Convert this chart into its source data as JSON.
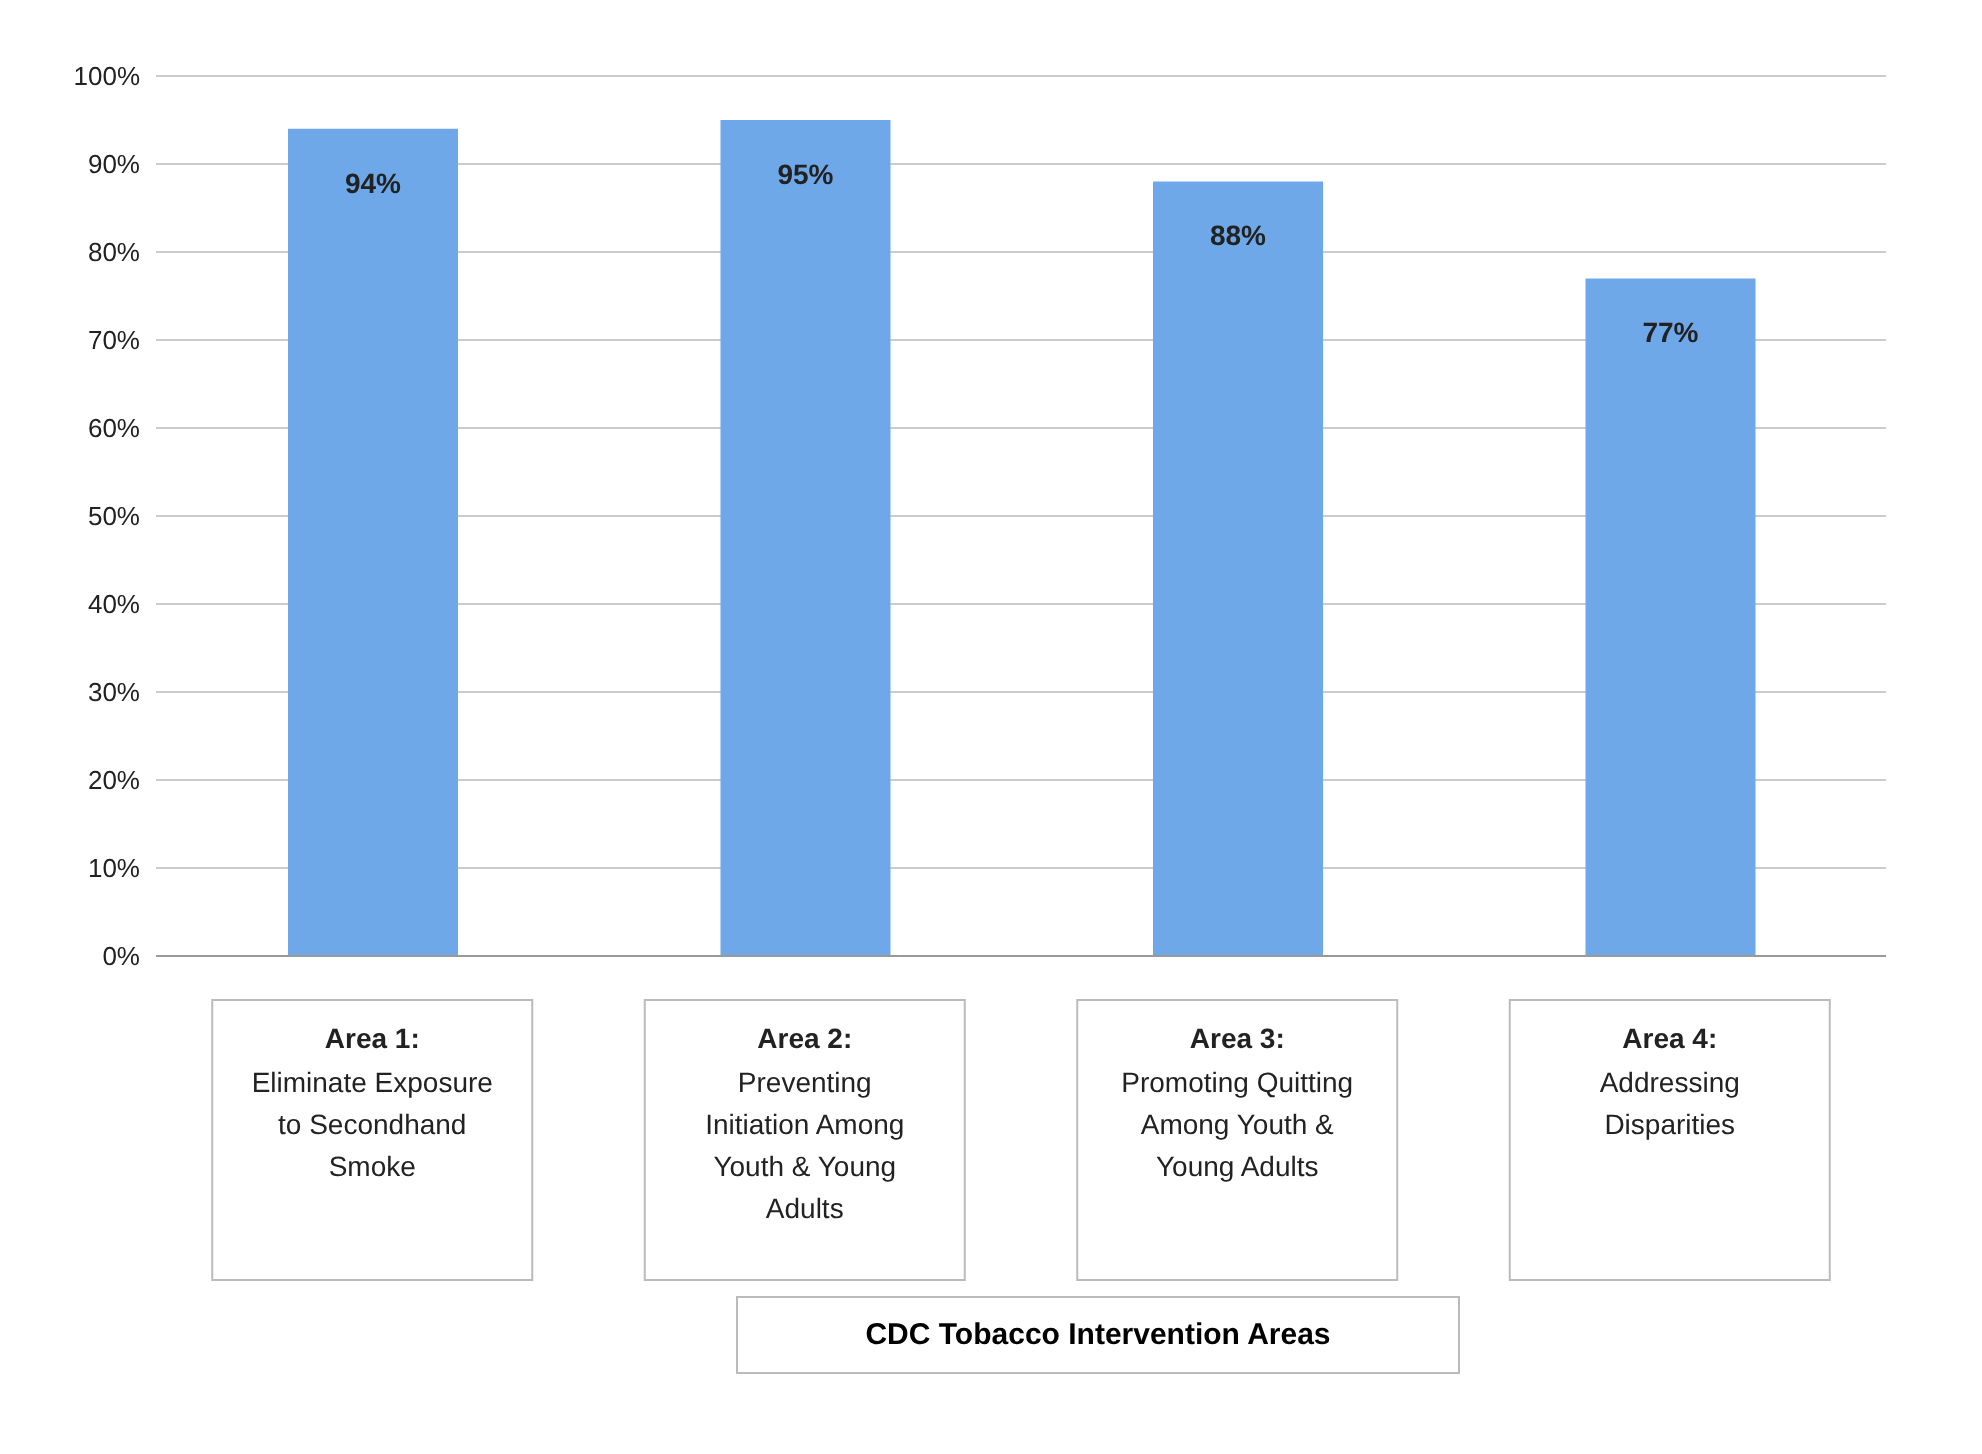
{
  "chart_data": {
    "type": "bar",
    "xlabel": "CDC Tobacco Intervention Areas",
    "categories": [
      "Area 1: Eliminate Exposure to Secondhand Smoke",
      "Area 2: Preventing Initiation Among Youth & Young Adults",
      "Area 3: Promoting Quitting Among Youth & Young Adults",
      "Area 4: Addressing Disparities"
    ],
    "values": [
      94,
      95,
      88,
      77
    ],
    "value_labels": [
      "94%",
      "95%",
      "88%",
      "77%"
    ],
    "color": "#6fa8e8",
    "ylim": [
      0,
      100
    ],
    "yticks": [
      {
        "value": 0,
        "label": "0%"
      },
      {
        "value": 10,
        "label": "10%"
      },
      {
        "value": 20,
        "label": "20%"
      },
      {
        "value": 30,
        "label": "30%"
      },
      {
        "value": 40,
        "label": "40%"
      },
      {
        "value": 50,
        "label": "50%"
      },
      {
        "value": 60,
        "label": "60%"
      },
      {
        "value": 70,
        "label": "70%"
      },
      {
        "value": 80,
        "label": "80%"
      },
      {
        "value": 90,
        "label": "90%"
      },
      {
        "value": 100,
        "label": "100%"
      }
    ],
    "grid": "y",
    "legend": false
  }
}
